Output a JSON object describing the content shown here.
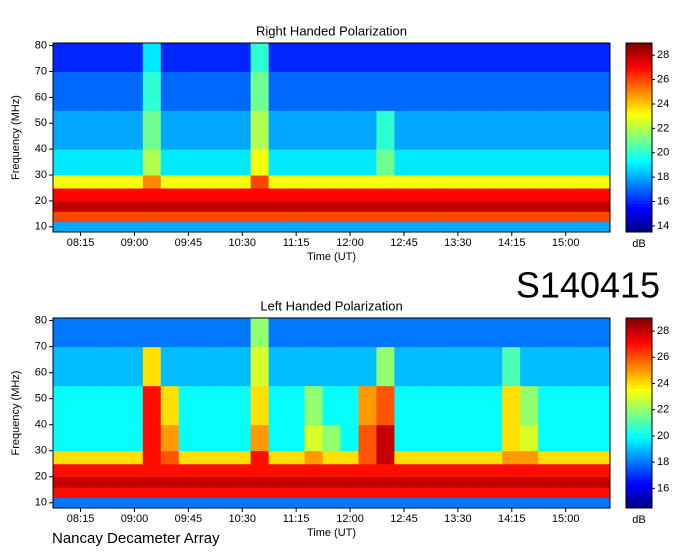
{
  "chart_data": [
    {
      "type": "heatmap",
      "title": "Right Handed Polarization",
      "xlabel": "Time (UT)",
      "ylabel": "Frequency (MHz)",
      "zlabel": "dB",
      "colormap": "jet",
      "x": [
        472,
        487,
        502,
        517,
        532,
        547,
        562,
        577,
        592,
        607,
        622,
        637,
        652,
        667,
        682,
        697,
        712,
        727,
        742,
        757,
        772,
        787,
        802,
        817,
        832,
        847,
        862,
        877,
        892,
        907,
        922,
        937
      ],
      "y": [
        8,
        12,
        16,
        20,
        25,
        30,
        40,
        55,
        70,
        81
      ],
      "z": [
        [
          18,
          18,
          18,
          18,
          18,
          18,
          18,
          18,
          18,
          18,
          18,
          18,
          18,
          18,
          18,
          18,
          18,
          18,
          18,
          18,
          18,
          18,
          18,
          18,
          18,
          18,
          18,
          18,
          18,
          18,
          18
        ],
        [
          26,
          26,
          26,
          26,
          26,
          26,
          26,
          26,
          26,
          26,
          26,
          26,
          26,
          26,
          26,
          26,
          26,
          26,
          26,
          26,
          26,
          26,
          26,
          26,
          26,
          26,
          26,
          26,
          26,
          26,
          26
        ],
        [
          28,
          28,
          28,
          28,
          28,
          28,
          28,
          28,
          28,
          28,
          28,
          28,
          28,
          28,
          28,
          28,
          28,
          28,
          28,
          28,
          28,
          28,
          28,
          28,
          28,
          28,
          28,
          28,
          28,
          28,
          28
        ],
        [
          27,
          27,
          27,
          27,
          27,
          27,
          27,
          27,
          27,
          27,
          27,
          27,
          27,
          27,
          27,
          27,
          27,
          27,
          27,
          27,
          27,
          27,
          27,
          27,
          27,
          27,
          27,
          27,
          27,
          27,
          27
        ],
        [
          23,
          23,
          23,
          23,
          23,
          25,
          23,
          23,
          23,
          23,
          23,
          26,
          23,
          23,
          23,
          23,
          23,
          23,
          23,
          23,
          23,
          23,
          23,
          23,
          23,
          23,
          23,
          23,
          23,
          23,
          23
        ],
        [
          19,
          19,
          19,
          19,
          19,
          22,
          19,
          19,
          19,
          19,
          19,
          23,
          19,
          19,
          19,
          19,
          19,
          19,
          21,
          19,
          19,
          19,
          19,
          19,
          19,
          19,
          19,
          19,
          19,
          19,
          19
        ],
        [
          18,
          18,
          18,
          18,
          18,
          21,
          18,
          18,
          18,
          18,
          18,
          22,
          18,
          18,
          18,
          18,
          18,
          18,
          20,
          18,
          18,
          18,
          18,
          18,
          18,
          18,
          18,
          18,
          18,
          18,
          18
        ],
        [
          17,
          17,
          17,
          17,
          17,
          20,
          17,
          17,
          17,
          17,
          17,
          21,
          17,
          17,
          17,
          17,
          17,
          17,
          17,
          17,
          17,
          17,
          17,
          17,
          17,
          17,
          17,
          17,
          17,
          17,
          17
        ],
        [
          16,
          16,
          16,
          16,
          16,
          19,
          16,
          16,
          16,
          16,
          16,
          20,
          16,
          16,
          16,
          16,
          16,
          16,
          16,
          16,
          16,
          16,
          16,
          16,
          16,
          16,
          16,
          16,
          16,
          16,
          16
        ]
      ],
      "xlim": [
        472,
        937
      ],
      "xticks": [
        {
          "value": 495,
          "label": "08:15"
        },
        {
          "value": 540,
          "label": "09:00"
        },
        {
          "value": 585,
          "label": "09:45"
        },
        {
          "value": 630,
          "label": "10:30"
        },
        {
          "value": 675,
          "label": "11:15"
        },
        {
          "value": 720,
          "label": "12:00"
        },
        {
          "value": 765,
          "label": "12:45"
        },
        {
          "value": 810,
          "label": "13:30"
        },
        {
          "value": 855,
          "label": "14:15"
        },
        {
          "value": 900,
          "label": "15:00"
        }
      ],
      "ylim": [
        8,
        81
      ],
      "yticks": [
        10,
        20,
        30,
        40,
        50,
        60,
        70,
        80
      ],
      "zlim": [
        13.5,
        29
      ],
      "zticks": [
        14,
        16,
        18,
        20,
        22,
        24,
        26,
        28
      ]
    },
    {
      "type": "heatmap",
      "title": "Left Handed Polarization",
      "xlabel": "Time (UT)",
      "ylabel": "Frequency (MHz)",
      "zlabel": "dB",
      "colormap": "jet",
      "x": [
        472,
        487,
        502,
        517,
        532,
        547,
        562,
        577,
        592,
        607,
        622,
        637,
        652,
        667,
        682,
        697,
        712,
        727,
        742,
        757,
        772,
        787,
        802,
        817,
        832,
        847,
        862,
        877,
        892,
        907,
        922,
        937
      ],
      "y": [
        8,
        12,
        16,
        20,
        25,
        30,
        40,
        55,
        70,
        81
      ],
      "z": [
        [
          18,
          18,
          18,
          18,
          18,
          18,
          18,
          18,
          18,
          18,
          18,
          18,
          18,
          18,
          18,
          18,
          18,
          18,
          18,
          18,
          18,
          18,
          18,
          18,
          18,
          18,
          18,
          18,
          18,
          18,
          18
        ],
        [
          27,
          27,
          27,
          27,
          27,
          27,
          27,
          27,
          27,
          27,
          27,
          27,
          27,
          27,
          27,
          27,
          27,
          27,
          27,
          27,
          27,
          27,
          27,
          27,
          27,
          27,
          27,
          27,
          27,
          27,
          27
        ],
        [
          28,
          28,
          28,
          28,
          28,
          28,
          28,
          28,
          28,
          28,
          28,
          28,
          28,
          28,
          28,
          28,
          28,
          28,
          28,
          28,
          28,
          28,
          28,
          28,
          28,
          28,
          28,
          28,
          28,
          28,
          28
        ],
        [
          27,
          27,
          27,
          27,
          27,
          27,
          27,
          27,
          27,
          27,
          27,
          27,
          27,
          27,
          27,
          27,
          27,
          27,
          27,
          27,
          27,
          27,
          27,
          27,
          27,
          27,
          27,
          27,
          27,
          27,
          27
        ],
        [
          24,
          24,
          24,
          24,
          24,
          27,
          26,
          24,
          24,
          24,
          24,
          27,
          24,
          24,
          25,
          24,
          24,
          26,
          28,
          24,
          24,
          24,
          24,
          24,
          24,
          25,
          25,
          24,
          24,
          24,
          24
        ],
        [
          20,
          20,
          20,
          20,
          20,
          27,
          25,
          20,
          20,
          20,
          20,
          25,
          20,
          20,
          23,
          22,
          20,
          26,
          28,
          20,
          20,
          20,
          20,
          20,
          20,
          24,
          23,
          20,
          20,
          20,
          20
        ],
        [
          20,
          20,
          20,
          20,
          20,
          27,
          24,
          20,
          20,
          20,
          20,
          24,
          20,
          20,
          22,
          20,
          20,
          25,
          26,
          20,
          20,
          20,
          20,
          20,
          20,
          24,
          22,
          20,
          20,
          20,
          20
        ],
        [
          19,
          19,
          19,
          19,
          19,
          24,
          19,
          19,
          19,
          19,
          19,
          23,
          19,
          19,
          19,
          19,
          19,
          19,
          22,
          19,
          19,
          19,
          19,
          19,
          19,
          21,
          19,
          19,
          19,
          19,
          19
        ],
        [
          18,
          18,
          18,
          18,
          18,
          18,
          18,
          18,
          18,
          18,
          18,
          22,
          18,
          18,
          18,
          18,
          18,
          18,
          18,
          18,
          18,
          18,
          18,
          18,
          18,
          18,
          18,
          18,
          18,
          18,
          18
        ]
      ],
      "xlim": [
        472,
        937
      ],
      "xticks": [
        {
          "value": 495,
          "label": "08:15"
        },
        {
          "value": 540,
          "label": "09:00"
        },
        {
          "value": 585,
          "label": "09:45"
        },
        {
          "value": 630,
          "label": "10:30"
        },
        {
          "value": 675,
          "label": "11:15"
        },
        {
          "value": 720,
          "label": "12:00"
        },
        {
          "value": 765,
          "label": "12:45"
        },
        {
          "value": 810,
          "label": "13:30"
        },
        {
          "value": 855,
          "label": "14:15"
        },
        {
          "value": 900,
          "label": "15:00"
        }
      ],
      "ylim": [
        8,
        81
      ],
      "yticks": [
        10,
        20,
        30,
        40,
        50,
        60,
        70,
        80
      ],
      "zlim": [
        14.5,
        29
      ],
      "zticks": [
        16,
        18,
        20,
        22,
        24,
        26,
        28
      ]
    }
  ],
  "annotations": {
    "code": "S140415",
    "footer": "Nancay Decameter Array"
  }
}
